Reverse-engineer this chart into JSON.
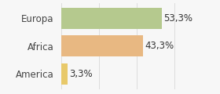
{
  "categories": [
    "America",
    "Africa",
    "Europa"
  ],
  "values": [
    3.3,
    43.3,
    53.3
  ],
  "bar_colors": [
    "#e8c96a",
    "#e8b882",
    "#b5c98e"
  ],
  "labels": [
    "3,3%",
    "43,3%",
    "53,3%"
  ],
  "xlim": [
    0,
    70
  ],
  "background_color": "#f7f7f7",
  "bar_height": 0.75,
  "label_fontsize": 8.5,
  "tick_fontsize": 8.5,
  "grid_color": "#dddddd",
  "grid_ticks": [
    0,
    20,
    40,
    60
  ]
}
